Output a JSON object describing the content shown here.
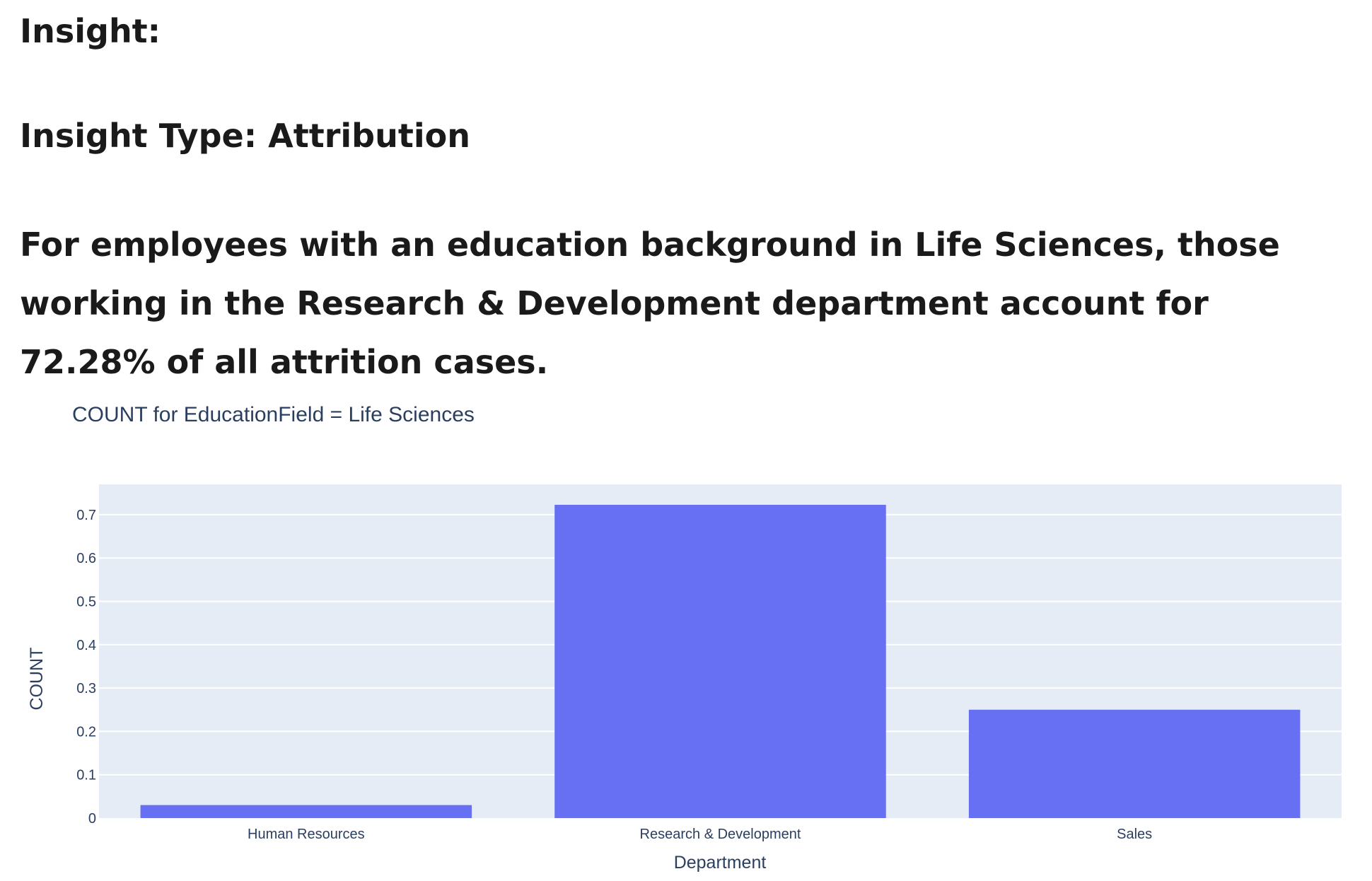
{
  "insight": {
    "heading": "Insight:",
    "type_line": "Insight Type: Attribution",
    "description": "For employees with an education background in Life Sciences, those working in the Research & Development department account for 72.28% of all attrition cases."
  },
  "chart_data": {
    "type": "bar",
    "title": "COUNT for EducationField = Life Sciences",
    "xlabel": "Department",
    "ylabel": "COUNT",
    "categories": [
      "Human Resources",
      "Research & Development",
      "Sales"
    ],
    "values": [
      0.03,
      0.7228,
      0.25
    ],
    "ylim": [
      0,
      0.77
    ],
    "yticks": [
      0,
      0.1,
      0.2,
      0.3,
      0.4,
      0.5,
      0.6,
      0.7
    ],
    "ytick_labels": [
      "0",
      "0.1",
      "0.2",
      "0.3",
      "0.4",
      "0.5",
      "0.6",
      "0.7"
    ],
    "grid": true,
    "legend": "none",
    "colors": {
      "bar": "#6770f2",
      "plot_bg": "#e5ecf6",
      "grid": "#ffffff",
      "text": "#2a3f5f"
    }
  }
}
